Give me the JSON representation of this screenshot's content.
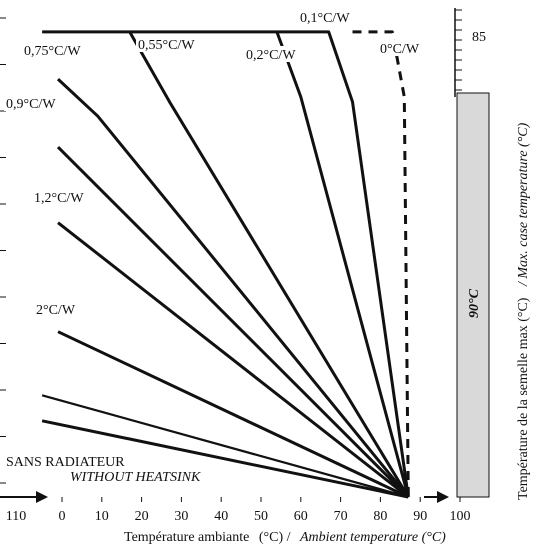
{
  "chart_data": {
    "type": "line",
    "xlabel": "Température ambiante",
    "xlabel_unit": "(°C) /",
    "xlabel_en": "Ambient temperature (°C)",
    "ylabel_right_fr": "Température de la semelle max (°C)",
    "ylabel_right_en": "/ Max. case temperature (°C)",
    "x_ticks": [
      "0",
      "10",
      "20",
      "30",
      "40",
      "50",
      "60",
      "70",
      "80",
      "90",
      "100"
    ],
    "x_left_cut_label": "110",
    "xlim": [
      -5,
      105
    ],
    "right_tick_label": "85",
    "band_label": "90°C",
    "band_color": "#d9d9d9",
    "line_color": "#111111",
    "convergence_point": [
      87,
      0
    ],
    "series": [
      {
        "name": "0°C/W",
        "label": "0°C/W",
        "dashed": true,
        "points": [
          [
            73,
            96.5
          ],
          [
            83,
            96.5
          ],
          [
            86,
            83
          ],
          [
            87,
            0
          ]
        ]
      },
      {
        "name": "0,1°C/W",
        "label": "0,1°C/W",
        "points": [
          [
            -5,
            96.5
          ],
          [
            67,
            96.5
          ],
          [
            73,
            82
          ],
          [
            87,
            0
          ]
        ]
      },
      {
        "name": "0,2°C/W",
        "label": "0,2°C/W",
        "points": [
          [
            54,
            96.5
          ],
          [
            60,
            83
          ],
          [
            87,
            0
          ]
        ]
      },
      {
        "name": "0,55°C/W",
        "label": "0,55°C/W",
        "points": [
          [
            17,
            96.5
          ],
          [
            27,
            82
          ],
          [
            87,
            0
          ]
        ]
      },
      {
        "name": "0,75°C/W",
        "label": "0,75°C/W",
        "points": [
          [
            -1,
            86.7
          ],
          [
            9,
            79
          ],
          [
            87,
            0
          ]
        ]
      },
      {
        "name": "0,9°C/W",
        "label": "0,9°C/W",
        "points": [
          [
            -1,
            72.6
          ],
          [
            87,
            0
          ]
        ]
      },
      {
        "name": "1,2°C/W",
        "label": "1,2°C/W",
        "points": [
          [
            -1,
            56.9
          ],
          [
            87,
            0
          ]
        ]
      },
      {
        "name": "2°C/W",
        "label": "2°C/W",
        "points": [
          [
            -1,
            34.3
          ],
          [
            87,
            0
          ]
        ]
      },
      {
        "name": "SANS RADIATEUR",
        "label": "SANS RADIATEUR",
        "label_en": "WITHOUT HEATSINK",
        "points": [
          [
            -5,
            15.8
          ],
          [
            87,
            0
          ]
        ],
        "extra_segment": [
          [
            -5,
            21.1
          ],
          [
            87,
            0
          ]
        ]
      }
    ]
  }
}
